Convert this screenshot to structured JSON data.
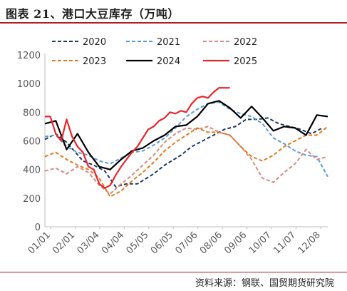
{
  "title": "图表 21、港口大豆库存（万吨）",
  "source": "资料来源：钢联、国贸期货研究院",
  "chart_data": {
    "type": "line",
    "title": "港口大豆库存（万吨）",
    "xlabel": "",
    "ylabel": "",
    "ylim": [
      0,
      1200
    ],
    "yticks": [
      0,
      200,
      400,
      600,
      800,
      1000,
      1200
    ],
    "x_tick_labels": [
      "01/01",
      "02/01",
      "03/04",
      "04/04",
      "05/05",
      "06/05",
      "07/06",
      "08/06",
      "09/06",
      "10/07",
      "11/07",
      "12/08"
    ],
    "grid": false,
    "legend_position": "top",
    "series": [
      {
        "name": "2020",
        "color": "#1f3864",
        "dash": "5,3",
        "x": [
          1,
          3,
          5,
          8,
          10,
          12,
          14,
          16,
          18,
          21,
          23,
          26,
          28,
          30,
          32,
          34,
          36,
          38,
          40,
          42,
          44,
          46,
          48,
          50,
          52
        ],
        "y": [
          610,
          650,
          590,
          460,
          430,
          390,
          280,
          300,
          300,
          370,
          430,
          500,
          560,
          600,
          640,
          680,
          700,
          750,
          750,
          760,
          720,
          700,
          680,
          650,
          690
        ]
      },
      {
        "name": "2021",
        "color": "#5b9bd5",
        "dash": "5,3",
        "x": [
          1,
          3,
          5,
          7,
          9,
          11,
          13,
          15,
          17,
          19,
          21,
          23,
          25,
          27,
          29,
          31,
          33,
          35,
          37,
          39,
          41,
          43,
          45,
          47,
          49,
          51,
          53
        ],
        "y": [
          630,
          640,
          560,
          520,
          500,
          460,
          440,
          480,
          520,
          530,
          570,
          620,
          690,
          770,
          820,
          860,
          870,
          820,
          790,
          770,
          720,
          620,
          580,
          530,
          500,
          490,
          350
        ]
      },
      {
        "name": "2022",
        "color": "#d68a84",
        "dash": "5,3",
        "x": [
          1,
          3,
          5,
          7,
          9,
          11,
          13,
          15,
          17,
          19,
          21,
          23,
          25,
          27,
          29,
          31,
          33,
          35,
          37,
          39,
          41,
          43,
          45,
          47,
          49,
          51,
          53
        ],
        "y": [
          390,
          410,
          370,
          420,
          380,
          290,
          230,
          300,
          360,
          430,
          500,
          590,
          650,
          690,
          680,
          700,
          660,
          640,
          560,
          470,
          340,
          310,
          380,
          440,
          540,
          470,
          490
        ]
      },
      {
        "name": "2023",
        "color": "#e07b1a",
        "dash": "5,3",
        "x": [
          1,
          3,
          5,
          7,
          9,
          11,
          13,
          15,
          17,
          19,
          21,
          23,
          25,
          27,
          29,
          31,
          33,
          35,
          37,
          39,
          41,
          43,
          45,
          47,
          49,
          51,
          53
        ],
        "y": [
          490,
          520,
          470,
          430,
          400,
          340,
          210,
          250,
          320,
          380,
          450,
          530,
          590,
          640,
          690,
          660,
          660,
          640,
          560,
          490,
          460,
          500,
          560,
          600,
          640,
          640,
          700
        ]
      },
      {
        "name": "2024",
        "color": "#000000",
        "dash": "",
        "x": [
          1,
          3,
          5,
          7,
          9,
          11,
          13,
          15,
          17,
          19,
          21,
          23,
          25,
          27,
          29,
          31,
          33,
          35,
          37,
          39,
          41,
          43,
          45,
          47,
          49,
          51,
          53
        ],
        "y": [
          720,
          740,
          540,
          650,
          520,
          420,
          400,
          470,
          530,
          550,
          600,
          640,
          700,
          710,
          770,
          860,
          880,
          830,
          760,
          840,
          760,
          670,
          700,
          690,
          640,
          780,
          770
        ]
      },
      {
        "name": "2025",
        "color": "#e8242a",
        "dash": "",
        "x": [
          1,
          2,
          3,
          4,
          5,
          6,
          7,
          8,
          9,
          10,
          11,
          12,
          13,
          14,
          15,
          16,
          17,
          18,
          19,
          20,
          21,
          22,
          23,
          24,
          25,
          26,
          27,
          28,
          29,
          30,
          31,
          32,
          33,
          34,
          35,
          36,
          37
        ],
        "y": [
          770,
          770,
          650,
          600,
          750,
          630,
          560,
          520,
          420,
          400,
          300,
          270,
          290,
          360,
          420,
          470,
          520,
          560,
          620,
          680,
          700,
          740,
          760,
          800,
          790,
          810,
          800,
          860,
          900,
          910,
          900,
          940,
          970,
          970,
          970,
          null,
          null
        ]
      }
    ]
  }
}
